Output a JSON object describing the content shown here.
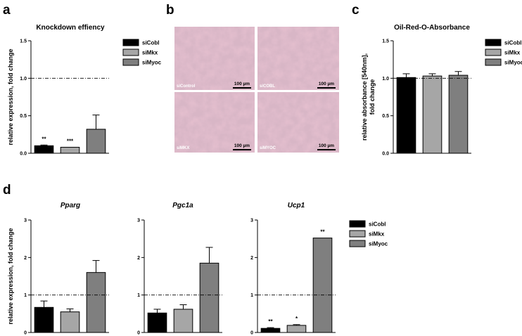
{
  "panel_labels": {
    "a": "a",
    "b": "b",
    "c": "c",
    "d": "d"
  },
  "legend": [
    {
      "name": "siCobl",
      "color": "#000000"
    },
    {
      "name": "siMkx",
      "color": "#a6a6a6"
    },
    {
      "name": "siMyoc",
      "color": "#7f7f7f"
    }
  ],
  "micrographs": {
    "scale_bar": "100 µm",
    "labels": [
      "siControl",
      "siCOBL",
      "siMKX",
      "siMYOC"
    ]
  },
  "chart_data": [
    {
      "id": "a",
      "type": "bar",
      "title": "Knockdown effiency",
      "ylabel": "relative expression, fold change",
      "categories": [
        "siCobl",
        "siMkx",
        "siMyoc"
      ],
      "values": [
        0.1,
        0.08,
        0.32
      ],
      "errors": [
        0.01,
        0.0,
        0.19
      ],
      "significance": [
        "**",
        "***",
        ""
      ],
      "ylim": [
        0,
        1.5
      ],
      "yticks": [
        "0.0",
        "0.5",
        "1.0",
        "1.5"
      ],
      "reference_line": 1.0,
      "legend": "right"
    },
    {
      "id": "c",
      "type": "bar",
      "title": "Oil-Red-O-Absorbance",
      "ylabel": "relative absorbance [540nm], fold change",
      "categories": [
        "siCobl",
        "siMkx",
        "siMyoc"
      ],
      "values": [
        1.01,
        1.03,
        1.04
      ],
      "errors": [
        0.05,
        0.03,
        0.05
      ],
      "significance": [
        "",
        "",
        ""
      ],
      "ylim": [
        0,
        1.5
      ],
      "yticks": [
        "0.0",
        "0.5",
        "1.0",
        "1.5"
      ],
      "reference_line": 1.0,
      "legend": "right"
    },
    {
      "id": "d1",
      "type": "bar",
      "title": "Pparg",
      "ylabel": "relative expression, fold change",
      "categories": [
        "siCobl",
        "siMkx",
        "siMyoc"
      ],
      "values": [
        0.67,
        0.55,
        1.6
      ],
      "errors": [
        0.17,
        0.08,
        0.32
      ],
      "significance": [
        "",
        "",
        ""
      ],
      "ylim": [
        0,
        3
      ],
      "yticks": [
        "0",
        "1",
        "2",
        "3"
      ],
      "reference_line": 1.0
    },
    {
      "id": "d2",
      "type": "bar",
      "title": "Pgc1a",
      "ylabel": "",
      "categories": [
        "siCobl",
        "siMkx",
        "siMyoc"
      ],
      "values": [
        0.52,
        0.62,
        1.85
      ],
      "errors": [
        0.1,
        0.12,
        0.42
      ],
      "significance": [
        "",
        "",
        ""
      ],
      "ylim": [
        0,
        3
      ],
      "yticks": [
        "0",
        "1",
        "2",
        "3"
      ],
      "reference_line": 1.0
    },
    {
      "id": "d3",
      "type": "bar",
      "title": "Ucp1",
      "ylabel": "",
      "categories": [
        "siCobl",
        "siMkx",
        "siMyoc"
      ],
      "values": [
        0.11,
        0.19,
        2.52
      ],
      "errors": [
        0.02,
        0.02,
        0.0
      ],
      "significance": [
        "**",
        "*",
        "**"
      ],
      "ylim": [
        0,
        3
      ],
      "yticks": [
        "0",
        "1",
        "2",
        "3"
      ],
      "reference_line": 1.0,
      "legend": "right"
    }
  ]
}
